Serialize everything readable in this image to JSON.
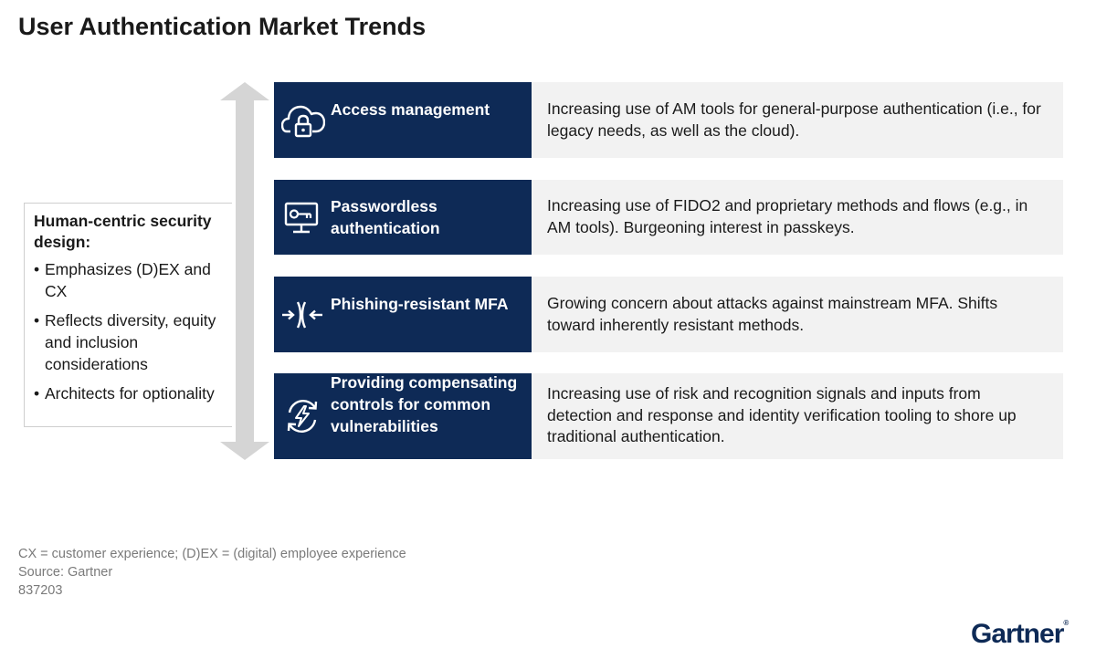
{
  "title": "User Authentication Market Trends",
  "left_box": {
    "heading": "Human-centric security design:",
    "bullets": [
      "Emphasizes (D)EX and CX",
      "Reflects diversity, equity and inclusion considerations",
      "Architects for optionality"
    ]
  },
  "trends": [
    {
      "icon": "cloud-lock-icon",
      "label": "Access management",
      "description": "Increasing use of AM tools for general-purpose authentication (i.e., for legacy needs, as well as the cloud)."
    },
    {
      "icon": "monitor-key-icon",
      "label": "Passwordless authentication",
      "description": "Increasing use of FIDO2 and proprietary methods and flows (e.g., in AM tools). Burgeoning interest in passkeys."
    },
    {
      "icon": "resist-arrows-icon",
      "label": "Phishing-resistant MFA",
      "description": "Growing concern about attacks against mainstream MFA. Shifts toward inherently resistant methods."
    },
    {
      "icon": "lightning-refresh-icon",
      "label": "Providing compensating controls for common vulnerabilities",
      "description": "Increasing use of risk and recognition signals and inputs from detection and response and identity verification tooling to shore up traditional authentication."
    }
  ],
  "footnotes": [
    "CX = customer experience; (D)EX = (digital) employee experience",
    "Source: Gartner",
    "837203"
  ],
  "logo": {
    "text": "Gartner",
    "mark": "®"
  },
  "colors": {
    "navy": "#0e2a56",
    "panel": "#f2f2f2",
    "arrow": "#d5d5d5",
    "footnote": "#7a7a7a"
  }
}
